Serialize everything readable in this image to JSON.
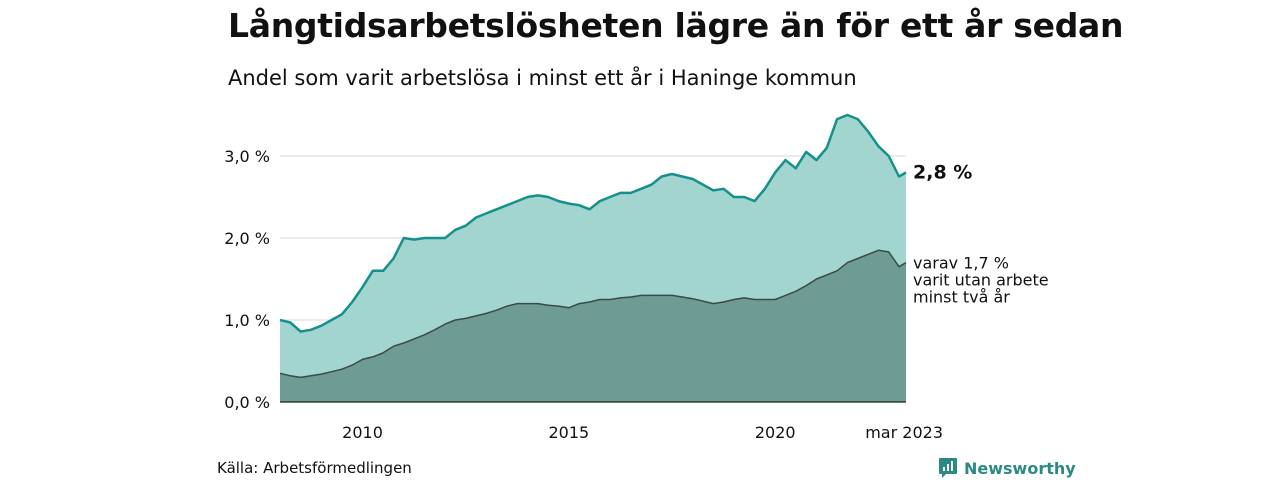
{
  "title": "Långtidsarbetslösheten lägre än för ett år sedan",
  "subtitle": "Andel som varit arbetslösa i minst ett år i Haninge kommun",
  "source": "Källa: Arbetsförmedlingen",
  "brand": {
    "name": "Newsworthy",
    "icon": "newsworthy-logo-icon"
  },
  "colors": {
    "total_fill": "#a2d5cf",
    "total_line": "#14918a",
    "sub_fill": "#6e9c94",
    "sub_line": "#3a4a46",
    "grid": "#d7d7d7",
    "brand": "#2b8a82"
  },
  "chart_data": {
    "type": "area",
    "title": "Långtidsarbetslösheten lägre än för ett år sedan",
    "subtitle": "Andel som varit arbetslösa i minst ett år i Haninge kommun",
    "xlabel": "",
    "ylabel": "",
    "xlim": [
      2008.0,
      2023.17
    ],
    "ylim": [
      0,
      3.5
    ],
    "grid": true,
    "x_ticks": [
      {
        "value": 2010,
        "label": "2010"
      },
      {
        "value": 2015,
        "label": "2015"
      },
      {
        "value": 2020,
        "label": "2020"
      },
      {
        "value": 2023.17,
        "label": "mar 2023"
      }
    ],
    "y_ticks": [
      {
        "value": 0,
        "label": "0,0 %"
      },
      {
        "value": 1,
        "label": "1,0 %"
      },
      {
        "value": 2,
        "label": "2,0 %"
      },
      {
        "value": 3,
        "label": "3,0 %"
      }
    ],
    "x": [
      2008.0,
      2008.25,
      2008.5,
      2008.75,
      2009.0,
      2009.25,
      2009.5,
      2009.75,
      2010.0,
      2010.25,
      2010.5,
      2010.75,
      2011.0,
      2011.25,
      2011.5,
      2011.75,
      2012.0,
      2012.25,
      2012.5,
      2012.75,
      2013.0,
      2013.25,
      2013.5,
      2013.75,
      2014.0,
      2014.25,
      2014.5,
      2014.75,
      2015.0,
      2015.25,
      2015.5,
      2015.75,
      2016.0,
      2016.25,
      2016.5,
      2016.75,
      2017.0,
      2017.25,
      2017.5,
      2017.75,
      2018.0,
      2018.25,
      2018.5,
      2018.75,
      2019.0,
      2019.25,
      2019.5,
      2019.75,
      2020.0,
      2020.25,
      2020.5,
      2020.75,
      2021.0,
      2021.25,
      2021.5,
      2021.75,
      2022.0,
      2022.25,
      2022.5,
      2022.75,
      2023.0,
      2023.17
    ],
    "series": [
      {
        "values": [
          1.0,
          0.97,
          0.86,
          0.88,
          0.93,
          1.0,
          1.07,
          1.22,
          1.4,
          1.6,
          1.6,
          1.75,
          2.0,
          1.98,
          2.0,
          2.0,
          2.0,
          2.1,
          2.15,
          2.25,
          2.3,
          2.35,
          2.4,
          2.45,
          2.5,
          2.52,
          2.5,
          2.45,
          2.42,
          2.4,
          2.35,
          2.45,
          2.5,
          2.55,
          2.55,
          2.6,
          2.65,
          2.75,
          2.78,
          2.75,
          2.72,
          2.65,
          2.58,
          2.6,
          2.5,
          2.5,
          2.45,
          2.6,
          2.8,
          2.95,
          2.85,
          3.05,
          2.95,
          3.1,
          3.45,
          3.5,
          3.45,
          3.3,
          3.12,
          3.0,
          2.75,
          2.8
        ],
        "label": "2,8 %"
      },
      {
        "values": [
          0.35,
          0.32,
          0.3,
          0.32,
          0.34,
          0.37,
          0.4,
          0.45,
          0.52,
          0.55,
          0.6,
          0.68,
          0.72,
          0.77,
          0.82,
          0.88,
          0.95,
          1.0,
          1.02,
          1.05,
          1.08,
          1.12,
          1.17,
          1.2,
          1.2,
          1.2,
          1.18,
          1.17,
          1.15,
          1.2,
          1.22,
          1.25,
          1.25,
          1.27,
          1.28,
          1.3,
          1.3,
          1.3,
          1.3,
          1.28,
          1.26,
          1.23,
          1.2,
          1.22,
          1.25,
          1.27,
          1.25,
          1.25,
          1.25,
          1.3,
          1.35,
          1.42,
          1.5,
          1.55,
          1.6,
          1.7,
          1.75,
          1.8,
          1.85,
          1.83,
          1.65,
          1.7
        ],
        "label_lines": [
          "varav 1,7 %",
          "varit utan arbete",
          "minst två år"
        ]
      }
    ]
  }
}
